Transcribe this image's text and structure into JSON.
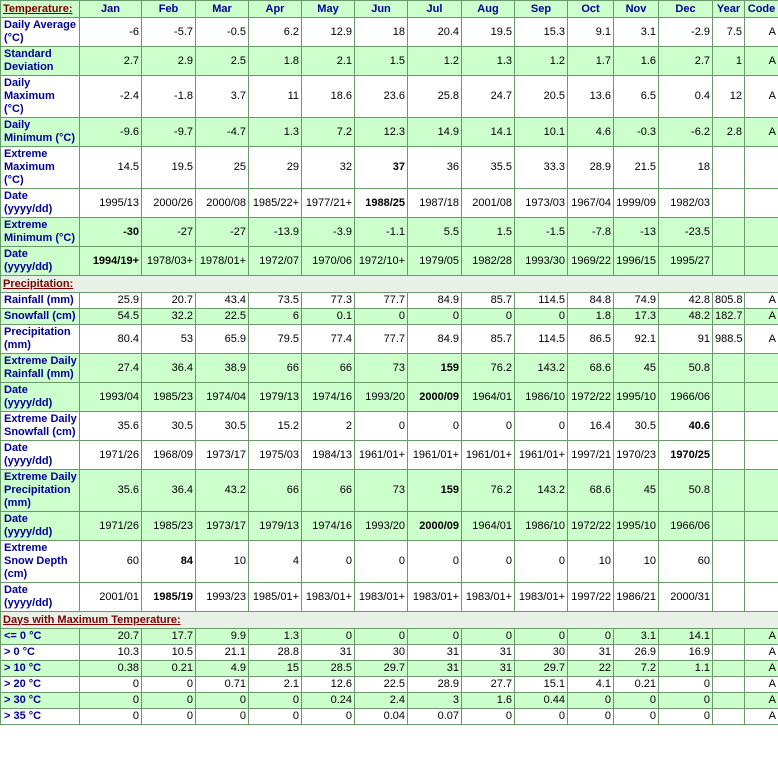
{
  "table": {
    "header": [
      "Jan",
      "Feb",
      "Mar",
      "Apr",
      "May",
      "Jun",
      "Jul",
      "Aug",
      "Sep",
      "Oct",
      "Nov",
      "Dec",
      "Year",
      "Code"
    ],
    "sections": [
      {
        "title": "Temperature:",
        "rows": [
          {
            "label": "Daily Average (°C)",
            "values": [
              -6,
              -5.7,
              -0.5,
              6.2,
              12.9,
              18,
              20.4,
              19.5,
              15.3,
              9.1,
              3.1,
              -2.9
            ],
            "year": 7.5,
            "code": "A",
            "green": false
          },
          {
            "label": "Standard Deviation",
            "values": [
              2.7,
              2.9,
              2.5,
              1.8,
              2.1,
              1.5,
              1.2,
              1.3,
              1.2,
              1.7,
              1.6,
              2.7
            ],
            "year": 1,
            "code": "A",
            "green": true
          },
          {
            "label": "Daily Maximum (°C)",
            "values": [
              -2.4,
              -1.8,
              3.7,
              11,
              18.6,
              23.6,
              25.8,
              24.7,
              20.5,
              13.6,
              6.5,
              0.4
            ],
            "year": 12,
            "code": "A",
            "green": false
          },
          {
            "label": "Daily Minimum (°C)",
            "values": [
              -9.6,
              -9.7,
              -4.7,
              1.3,
              7.2,
              12.3,
              14.9,
              14.1,
              10.1,
              4.6,
              -0.3,
              -6.2
            ],
            "year": 2.8,
            "code": "A",
            "green": true
          },
          {
            "label": "Extreme Maximum (°C)",
            "values": [
              14.5,
              19.5,
              25,
              29,
              32,
              37,
              36,
              35.5,
              33.3,
              28.9,
              21.5,
              18
            ],
            "bold": [
              5
            ],
            "green": false
          },
          {
            "label": "Date (yyyy/dd)",
            "values": [
              "1995/13",
              "2000/26",
              "2000/08",
              "1985/22+",
              "1977/21+",
              "1988/25",
              "1987/18",
              "2001/08",
              "1973/03",
              "1967/04",
              "1999/09",
              "1982/03"
            ],
            "bold": [
              5
            ],
            "green": false
          },
          {
            "label": "Extreme Minimum (°C)",
            "values": [
              -30,
              -27,
              -27,
              -13.9,
              -3.9,
              -1.1,
              5.5,
              1.5,
              -1.5,
              -7.8,
              -13,
              -23.5
            ],
            "bold": [
              0
            ],
            "green": true
          },
          {
            "label": "Date (yyyy/dd)",
            "values": [
              "1994/19+",
              "1978/03+",
              "1978/01+",
              "1972/07",
              "1970/06",
              "1972/10+",
              "1979/05",
              "1982/28",
              "1993/30",
              "1969/22",
              "1996/15",
              "1995/27"
            ],
            "bold": [
              0
            ],
            "green": true
          }
        ]
      },
      {
        "title": "Precipitation:",
        "rows": [
          {
            "label": "Rainfall (mm)",
            "values": [
              25.9,
              20.7,
              43.4,
              73.5,
              77.3,
              77.7,
              84.9,
              85.7,
              114.5,
              84.8,
              74.9,
              42.8
            ],
            "year": 805.8,
            "code": "A",
            "green": false
          },
          {
            "label": "Snowfall (cm)",
            "values": [
              54.5,
              32.2,
              22.5,
              6,
              0.1,
              0,
              0,
              0,
              0,
              1.8,
              17.3,
              48.2
            ],
            "year": 182.7,
            "code": "A",
            "green": true
          },
          {
            "label": "Precipitation (mm)",
            "values": [
              80.4,
              53,
              65.9,
              79.5,
              77.4,
              77.7,
              84.9,
              85.7,
              114.5,
              86.5,
              92.1,
              91
            ],
            "year": 988.5,
            "code": "A",
            "green": false
          },
          {
            "label": "Extreme Daily Rainfall (mm)",
            "values": [
              27.4,
              36.4,
              38.9,
              66,
              66,
              73,
              159,
              76.2,
              143.2,
              68.6,
              45,
              50.8
            ],
            "bold": [
              6
            ],
            "green": true
          },
          {
            "label": "Date (yyyy/dd)",
            "values": [
              "1993/04",
              "1985/23",
              "1974/04",
              "1979/13",
              "1974/16",
              "1993/20",
              "2000/09",
              "1964/01",
              "1986/10",
              "1972/22",
              "1995/10",
              "1966/06"
            ],
            "bold": [
              6
            ],
            "green": true
          },
          {
            "label": "Extreme Daily Snowfall (cm)",
            "values": [
              35.6,
              30.5,
              30.5,
              15.2,
              2,
              0,
              0,
              0,
              0,
              16.4,
              30.5,
              40.6
            ],
            "bold": [
              11
            ],
            "green": false
          },
          {
            "label": "Date (yyyy/dd)",
            "values": [
              "1971/26",
              "1968/09",
              "1973/17",
              "1975/03",
              "1984/13",
              "1961/01+",
              "1961/01+",
              "1961/01+",
              "1961/01+",
              "1997/21",
              "1970/23",
              "1970/25"
            ],
            "bold": [
              11
            ],
            "green": false
          },
          {
            "label": "Extreme Daily Precipitation (mm)",
            "values": [
              35.6,
              36.4,
              43.2,
              66,
              66,
              73,
              159,
              76.2,
              143.2,
              68.6,
              45,
              50.8
            ],
            "bold": [
              6
            ],
            "green": true
          },
          {
            "label": "Date (yyyy/dd)",
            "values": [
              "1971/26",
              "1985/23",
              "1973/17",
              "1979/13",
              "1974/16",
              "1993/20",
              "2000/09",
              "1964/01",
              "1986/10",
              "1972/22",
              "1995/10",
              "1966/06"
            ],
            "bold": [
              6
            ],
            "green": true
          },
          {
            "label": "Extreme Snow Depth (cm)",
            "values": [
              60,
              84,
              10,
              4,
              0,
              0,
              0,
              0,
              0,
              10,
              10,
              60
            ],
            "bold": [
              1
            ],
            "green": false
          },
          {
            "label": "Date (yyyy/dd)",
            "values": [
              "2001/01",
              "1985/19",
              "1993/23",
              "1985/01+",
              "1983/01+",
              "1983/01+",
              "1983/01+",
              "1983/01+",
              "1983/01+",
              "1997/22",
              "1986/21",
              "2000/31"
            ],
            "bold": [
              1
            ],
            "green": false
          }
        ]
      },
      {
        "title": "Days with Maximum Temperature:",
        "rows": [
          {
            "label": "<= 0 °C",
            "values": [
              20.7,
              17.7,
              9.9,
              1.3,
              0,
              0,
              0,
              0,
              0,
              0,
              3.1,
              14.1
            ],
            "code": "A",
            "green": true
          },
          {
            "label": "> 0 °C",
            "values": [
              10.3,
              10.5,
              21.1,
              28.8,
              31,
              30,
              31,
              31,
              30,
              31,
              26.9,
              16.9
            ],
            "code": "A",
            "green": false
          },
          {
            "label": "> 10 °C",
            "values": [
              0.38,
              0.21,
              4.9,
              15,
              28.5,
              29.7,
              31,
              31,
              29.7,
              22,
              7.2,
              1.1
            ],
            "code": "A",
            "green": true
          },
          {
            "label": "> 20 °C",
            "values": [
              0,
              0,
              0.71,
              2.1,
              12.6,
              22.5,
              28.9,
              27.7,
              15.1,
              4.1,
              0.21,
              0
            ],
            "code": "A",
            "green": false
          },
          {
            "label": "> 30 °C",
            "values": [
              0,
              0,
              0,
              0,
              0.24,
              2.4,
              3,
              1.6,
              0.44,
              0,
              0,
              0
            ],
            "code": "A",
            "green": true
          },
          {
            "label": "> 35 °C",
            "values": [
              0,
              0,
              0,
              0,
              0,
              0.04,
              0.07,
              0,
              0,
              0,
              0,
              0
            ],
            "code": "A",
            "green": false
          }
        ]
      }
    ]
  }
}
